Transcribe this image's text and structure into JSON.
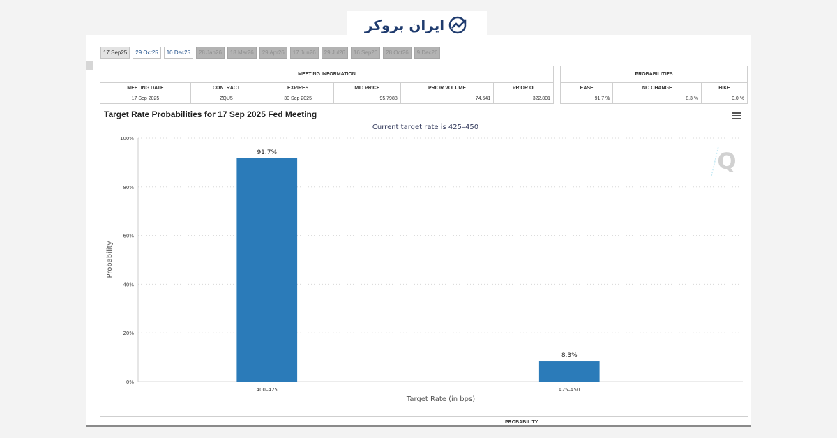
{
  "brand": {
    "name": "ایران بروکر",
    "icon": "trend-chart-icon",
    "color": "#1f3b6e"
  },
  "tabs": [
    {
      "label": "17 Sep25",
      "state": "active"
    },
    {
      "label": "29 Oct25",
      "state": "light"
    },
    {
      "label": "10 Dec25",
      "state": "light"
    },
    {
      "label": "28 Jan26",
      "state": "dark"
    },
    {
      "label": "18 Mar26",
      "state": "dark"
    },
    {
      "label": "29 Apr26",
      "state": "dark"
    },
    {
      "label": "17 Jun26",
      "state": "dark"
    },
    {
      "label": "29 Jul26",
      "state": "dark"
    },
    {
      "label": "16 Sep26",
      "state": "dark"
    },
    {
      "label": "28 Oct26",
      "state": "dark"
    },
    {
      "label": "9 Dec26",
      "state": "dark"
    }
  ],
  "meeting_info": {
    "heading": "MEETING INFORMATION",
    "columns": [
      "MEETING DATE",
      "CONTRACT",
      "EXPIRES",
      "MID PRICE",
      "PRIOR VOLUME",
      "PRIOR OI"
    ],
    "row": [
      "17 Sep 2025",
      "ZQU5",
      "30 Sep 2025",
      "95.7988",
      "74,541",
      "322,801"
    ]
  },
  "probabilities": {
    "heading": "PROBABILITIES",
    "columns": [
      "EASE",
      "NO CHANGE",
      "HIKE"
    ],
    "row": [
      "91.7 %",
      "8.3 %",
      "0.0 %"
    ]
  },
  "chart": {
    "title": "Target Rate Probabilities for 17 Sep 2025 Fed Meeting",
    "menu_icon": "hamburger-menu-icon",
    "watermark": "Q"
  },
  "chart_data": {
    "type": "bar",
    "title": "Target Rate Probabilities for 17 Sep 2025 Fed Meeting",
    "subtitle": "Current target rate is 425–450",
    "categories": [
      "400–425",
      "425–450"
    ],
    "values": [
      91.7,
      8.3
    ],
    "data_labels": [
      "91.7%",
      "8.3%"
    ],
    "xlabel": "Target Rate (in bps)",
    "ylabel": "Probability",
    "ylim": [
      0,
      100
    ],
    "yticks": [
      0,
      20,
      40,
      60,
      80,
      100
    ],
    "ytick_labels": [
      "0%",
      "20%",
      "40%",
      "60%",
      "80%",
      "100%"
    ],
    "grid": true,
    "bar_color": "#2b7bb9"
  },
  "bottom": {
    "label": "PROBABILITY"
  }
}
